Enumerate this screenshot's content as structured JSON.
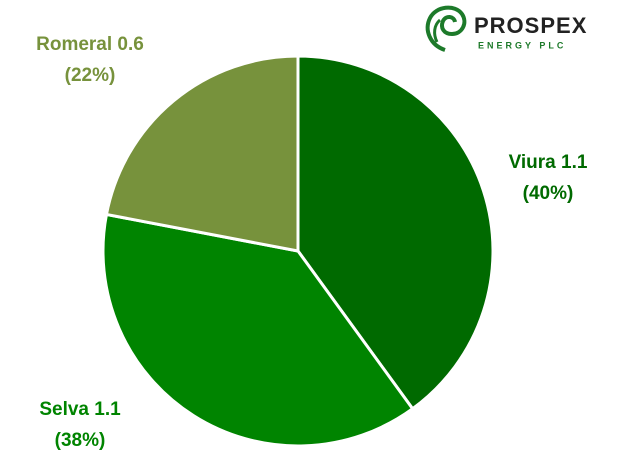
{
  "chart_data": {
    "type": "pie",
    "categories": [
      "Viura 1.1",
      "Selva 1.1",
      "Romeral 0.6"
    ],
    "values": [
      40,
      38,
      22
    ],
    "value_labels": [
      "(40%)",
      "(38%)",
      "(22%)"
    ],
    "colors": [
      "#006a00",
      "#008400",
      "#77923c"
    ]
  },
  "logo": {
    "name": "PROSPEX",
    "subtitle": "ENERGY PLC"
  }
}
